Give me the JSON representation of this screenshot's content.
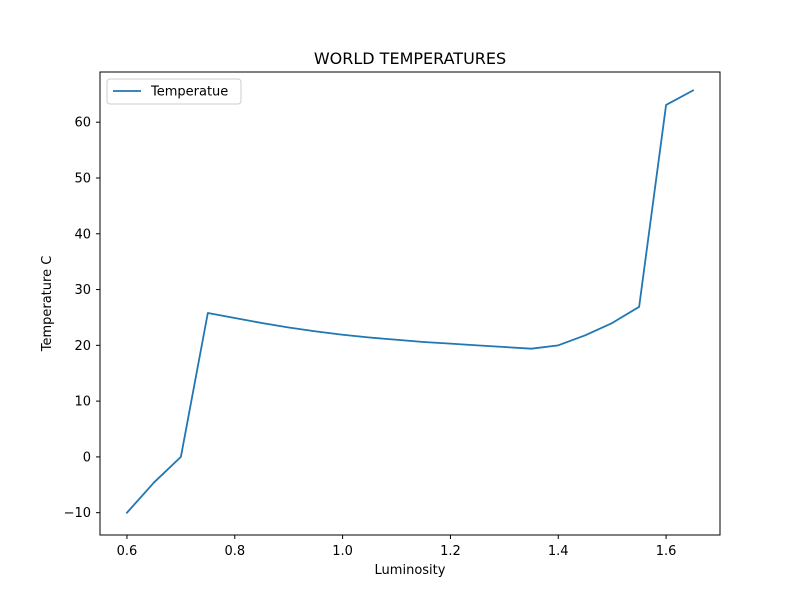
{
  "chart_data": {
    "type": "line",
    "title": "WORLD TEMPERATURES",
    "xlabel": "Luminosity",
    "ylabel": "Temperature C",
    "xlim": [
      0.55,
      1.7
    ],
    "ylim": [
      -14,
      69
    ],
    "xticks": [
      0.6,
      0.8,
      1.0,
      1.2,
      1.4,
      1.6
    ],
    "xtick_labels": [
      "0.6",
      "0.8",
      "1.0",
      "1.2",
      "1.4",
      "1.6"
    ],
    "yticks": [
      -10,
      0,
      10,
      20,
      30,
      40,
      50,
      60
    ],
    "ytick_labels": [
      "−10",
      "0",
      "10",
      "20",
      "30",
      "40",
      "50",
      "60"
    ],
    "grid": false,
    "legend_position": "top-left",
    "series": [
      {
        "name": "Temperatue",
        "color": "#1f77b4",
        "x": [
          0.6,
          0.65,
          0.7,
          0.75,
          0.8,
          0.85,
          0.9,
          0.95,
          1.0,
          1.05,
          1.1,
          1.15,
          1.2,
          1.25,
          1.3,
          1.35,
          1.4,
          1.45,
          1.5,
          1.55,
          1.6,
          1.65
        ],
        "y": [
          -10,
          -4.6,
          0,
          25.8,
          24.9,
          24.0,
          23.2,
          22.5,
          21.9,
          21.4,
          21.0,
          20.6,
          20.3,
          20.0,
          19.7,
          19.4,
          20.0,
          21.8,
          24.0,
          26.9,
          63.1,
          65.7
        ]
      }
    ]
  }
}
